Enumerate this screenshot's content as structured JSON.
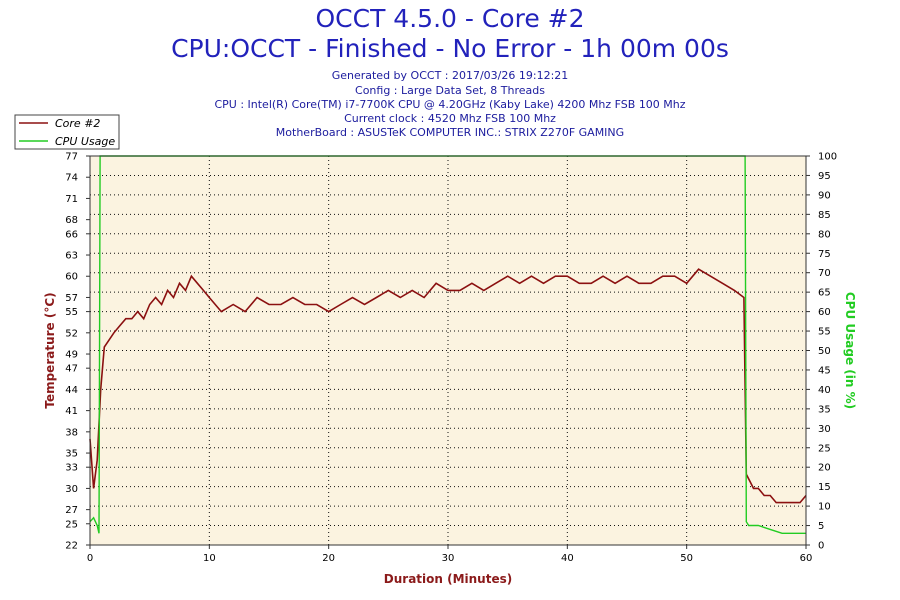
{
  "header": {
    "title": "OCCT 4.5.0 - Core #2",
    "subtitle": "CPU:OCCT - Finished - No Error - 1h 00m 00s",
    "info": [
      "Generated by OCCT : 2017/03/26 19:12:21",
      "Config : Large Data Set, 8 Threads",
      "CPU : Intel(R) Core(TM) i7-7700K CPU @ 4.20GHz (Kaby Lake) 4200 Mhz FSB 100 Mhz",
      "Current clock : 4520 Mhz FSB 100 Mhz",
      "MotherBoard : ASUSTeK COMPUTER INC.: STRIX Z270F GAMING"
    ]
  },
  "colors": {
    "temperature": "#8b1010",
    "cpu_usage": "#22cc22",
    "plot_background": "#fbf3e0",
    "title": "#2222bb",
    "axis_label": "#8b1a1a"
  },
  "chart_data": {
    "type": "line",
    "xlabel": "Duration (Minutes)",
    "ylabel": "Temperature (°C)",
    "y2label": "CPU Usage (in %)",
    "xlim": [
      0,
      60
    ],
    "ylim": [
      22,
      77
    ],
    "y2lim": [
      0,
      100
    ],
    "x_ticks": [
      0,
      10,
      20,
      30,
      40,
      50,
      60
    ],
    "y_ticks": [
      22,
      25,
      27,
      30,
      33,
      35,
      38,
      41,
      44,
      47,
      49,
      52,
      55,
      57,
      60,
      63,
      66,
      68,
      71,
      74,
      77
    ],
    "y2_ticks": [
      0,
      5,
      10,
      15,
      20,
      25,
      30,
      35,
      40,
      45,
      50,
      55,
      60,
      65,
      70,
      75,
      80,
      85,
      90,
      95,
      100
    ],
    "grid": true,
    "legend_position": "top-left",
    "series": [
      {
        "name": "Core #2",
        "axis": "left",
        "x": [
          0,
          0.3,
          0.6,
          0.9,
          1.2,
          1.6,
          2.0,
          2.5,
          3.0,
          3.5,
          4.0,
          4.5,
          5.0,
          5.5,
          6.0,
          6.5,
          7.0,
          7.5,
          8.0,
          8.5,
          9.0,
          9.5,
          10.0,
          11,
          12,
          13,
          14,
          15,
          16,
          17,
          18,
          19,
          20,
          21,
          22,
          23,
          24,
          25,
          26,
          27,
          28,
          29,
          30,
          31,
          32,
          33,
          34,
          35,
          36,
          37,
          38,
          39,
          40,
          41,
          42,
          43,
          44,
          45,
          46,
          47,
          48,
          49,
          50,
          51,
          52,
          53,
          54,
          54.8,
          55.0,
          55.3,
          55.6,
          56,
          56.5,
          57,
          57.5,
          58,
          58.5,
          59,
          59.5,
          60
        ],
        "y": [
          37,
          30,
          34,
          44,
          50,
          51,
          52,
          53,
          54,
          54,
          55,
          54,
          56,
          57,
          56,
          58,
          57,
          59,
          58,
          60,
          59,
          58,
          57,
          55,
          56,
          55,
          57,
          56,
          56,
          57,
          56,
          56,
          55,
          56,
          57,
          56,
          57,
          58,
          57,
          58,
          57,
          59,
          58,
          58,
          59,
          58,
          59,
          60,
          59,
          60,
          59,
          60,
          60,
          59,
          59,
          60,
          59,
          60,
          59,
          59,
          60,
          60,
          59,
          61,
          60,
          59,
          58,
          57,
          32,
          31,
          30,
          30,
          29,
          29,
          28,
          28,
          28,
          28,
          28,
          29
        ]
      },
      {
        "name": "CPU Usage",
        "axis": "right",
        "x": [
          0,
          0.3,
          0.6,
          0.75,
          0.85,
          1.0,
          54.9,
          55.0,
          55.2,
          56,
          57,
          58,
          59,
          60
        ],
        "y": [
          6,
          7,
          5,
          3,
          100,
          100,
          100,
          6,
          5,
          5,
          4,
          3,
          3,
          3
        ]
      }
    ]
  }
}
